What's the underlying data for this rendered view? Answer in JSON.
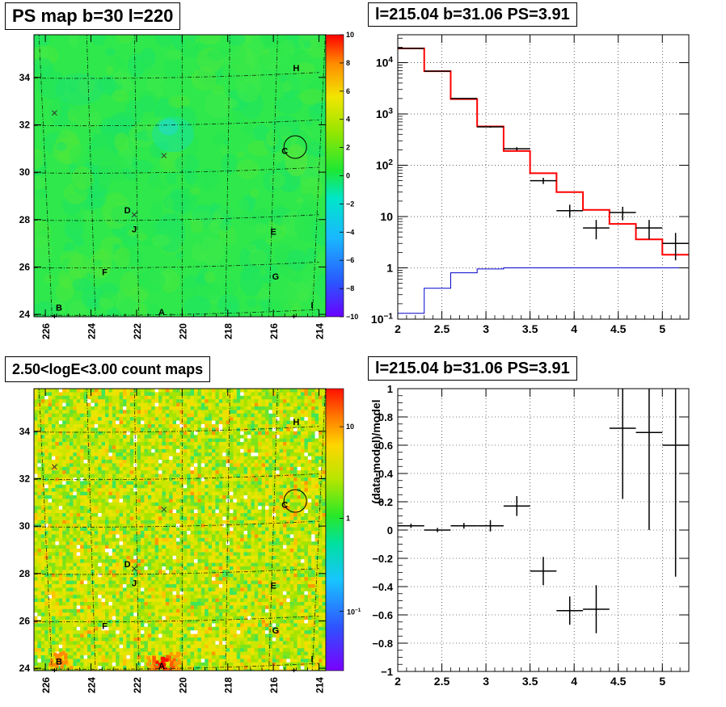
{
  "panels": {
    "ps_map_title": "PS map b=30 l=220",
    "spectrum_title": "l=215.04 b=31.06 PS=3.91",
    "count_map_title": "2.50<logE<3.00 count maps",
    "residual_title": "l=215.04 b=31.06 PS=3.91"
  },
  "colors": {
    "model_line": "#ff0000",
    "background_line": "#0000cc",
    "data_marks": "#000000",
    "grid": "#000000"
  },
  "chart_data": [
    {
      "type": "heatmap",
      "title": "PS map b=30 l=220",
      "xlim": [
        226.5,
        213.7
      ],
      "ylim": [
        23.9,
        35.8
      ],
      "x_ticks": [
        "226",
        "224",
        "222",
        "220",
        "218",
        "216",
        "214"
      ],
      "y_ticks": [
        "24",
        "26",
        "28",
        "30",
        "32",
        "34"
      ],
      "colorbar": {
        "range": [
          -10,
          10
        ],
        "ticks": [
          "10",
          "8",
          "6",
          "4",
          "2",
          "0",
          "−2",
          "−4",
          "−6",
          "−8",
          "−10"
        ]
      },
      "markers": [
        {
          "label": "H",
          "l": 215.0,
          "b": 34.4
        },
        {
          "label": "C",
          "l": 215.5,
          "b": 30.9
        },
        {
          "label": "D",
          "l": 222.4,
          "b": 28.4
        },
        {
          "label": "J",
          "l": 222.1,
          "b": 27.6
        },
        {
          "label": "E",
          "l": 216.0,
          "b": 27.5
        },
        {
          "label": "F",
          "l": 223.4,
          "b": 25.8
        },
        {
          "label": "G",
          "l": 215.9,
          "b": 25.6
        },
        {
          "label": "B",
          "l": 225.4,
          "b": 24.3
        },
        {
          "label": "A",
          "l": 220.9,
          "b": 24.1
        },
        {
          "label": "I",
          "l": 214.3,
          "b": 24.4
        }
      ],
      "crosses": [
        {
          "l": 225.6,
          "b": 32.5
        },
        {
          "l": 220.8,
          "b": 30.7
        },
        {
          "l": 222.1,
          "b": 28.2
        }
      ],
      "circle": {
        "l": 215.04,
        "b": 31.06
      }
    },
    {
      "type": "line",
      "title": "l=215.04 b=31.06 PS=3.91",
      "xlim": [
        2.0,
        5.3
      ],
      "ylim": [
        0.1,
        35000
      ],
      "log_y": true,
      "x_ticks": [
        "2",
        "2.5",
        "3",
        "3.5",
        "4",
        "4.5",
        "5"
      ],
      "y_ticks": [
        "10^4",
        "10^3",
        "10^2",
        "10",
        "1",
        "10^-1"
      ],
      "series": [
        {
          "kind": "step",
          "x_edges": [
            2.0,
            2.3,
            2.6,
            2.9,
            3.2,
            3.5,
            3.8,
            4.1,
            4.4,
            4.7,
            5.0,
            5.3
          ],
          "values": [
            19000,
            6800,
            1950,
            570,
            190,
            70,
            30,
            13.5,
            7.2,
            3.6,
            1.8
          ]
        },
        {
          "kind": "step",
          "x_edges": [
            2.0,
            2.3,
            2.6,
            2.9,
            3.2,
            3.5,
            3.8,
            4.1,
            4.4,
            4.7,
            5.0,
            5.3
          ],
          "values": [
            0.13,
            0.4,
            0.8,
            0.95,
            1.0,
            1.0,
            1.0,
            1.0,
            1.0,
            1.0,
            1.0
          ]
        },
        {
          "kind": "points",
          "points": [
            {
              "x": 2.15,
              "y": 19000,
              "xerr": 0.15,
              "lo": 18800,
              "hi": 19200
            },
            {
              "x": 2.45,
              "y": 6800,
              "xerr": 0.15,
              "lo": 6700,
              "hi": 6900
            },
            {
              "x": 2.75,
              "y": 2000,
              "xerr": 0.15,
              "lo": 1950,
              "hi": 2050
            },
            {
              "x": 3.05,
              "y": 560,
              "xerr": 0.15,
              "lo": 540,
              "hi": 580
            },
            {
              "x": 3.35,
              "y": 210,
              "xerr": 0.15,
              "lo": 195,
              "hi": 225
            },
            {
              "x": 3.65,
              "y": 50,
              "xerr": 0.15,
              "lo": 43,
              "hi": 57
            },
            {
              "x": 3.95,
              "y": 13,
              "xerr": 0.15,
              "lo": 9.5,
              "hi": 17
            },
            {
              "x": 4.25,
              "y": 6,
              "xerr": 0.15,
              "lo": 3.6,
              "hi": 8.6
            },
            {
              "x": 4.55,
              "y": 12,
              "xerr": 0.15,
              "lo": 8.5,
              "hi": 15.5
            },
            {
              "x": 4.85,
              "y": 6,
              "xerr": 0.15,
              "lo": 3.6,
              "hi": 8.6
            },
            {
              "x": 5.15,
              "y": 3,
              "xerr": 0.15,
              "lo": 1.4,
              "hi": 4.8
            }
          ]
        }
      ]
    },
    {
      "type": "heatmap",
      "title": "2.50<logE<3.00 count maps",
      "xlim": [
        226.5,
        213.7
      ],
      "ylim": [
        23.9,
        35.8
      ],
      "x_ticks": [
        "226",
        "224",
        "222",
        "220",
        "218",
        "216",
        "214"
      ],
      "y_ticks": [
        "24",
        "26",
        "28",
        "30",
        "32",
        "34"
      ],
      "colorbar": {
        "log": true,
        "ticks": [
          "10",
          "1",
          "10^-1"
        ]
      }
    },
    {
      "type": "scatter",
      "title": "l=215.04 b=31.06 PS=3.91",
      "ylabel": "(data-model)/model",
      "xlim": [
        2.0,
        5.3
      ],
      "ylim": [
        -1.0,
        1.0
      ],
      "x_ticks": [
        "2",
        "2.5",
        "3",
        "3.5",
        "4",
        "4.5",
        "5"
      ],
      "y_ticks": [
        "1",
        "0.8",
        "0.6",
        "0.4",
        "0.2",
        "0",
        "−0.2",
        "−0.4",
        "−0.6",
        "−0.8",
        "−1"
      ],
      "points": [
        {
          "x": 2.15,
          "y": 0.03,
          "xerr": 0.15,
          "yerr": 0.015
        },
        {
          "x": 2.45,
          "y": 0.0,
          "xerr": 0.15,
          "yerr": 0.015
        },
        {
          "x": 2.75,
          "y": 0.03,
          "xerr": 0.15,
          "yerr": 0.02
        },
        {
          "x": 3.05,
          "y": 0.03,
          "xerr": 0.15,
          "yerr": 0.04
        },
        {
          "x": 3.35,
          "y": 0.17,
          "xerr": 0.15,
          "yerr": 0.07
        },
        {
          "x": 3.65,
          "y": -0.29,
          "xerr": 0.15,
          "yerr": 0.1
        },
        {
          "x": 3.95,
          "y": -0.57,
          "xerr": 0.15,
          "yerr": 0.1
        },
        {
          "x": 4.25,
          "y": -0.56,
          "xerr": 0.15,
          "yerr": 0.17
        },
        {
          "x": 4.55,
          "y": 0.72,
          "xerr": 0.15,
          "yerr": 0.5
        },
        {
          "x": 4.85,
          "y": 0.69,
          "xerr": 0.15,
          "yerr": 0.69
        },
        {
          "x": 5.15,
          "y": 0.6,
          "xerr": 0.15,
          "yerr": 0.93
        }
      ]
    }
  ]
}
